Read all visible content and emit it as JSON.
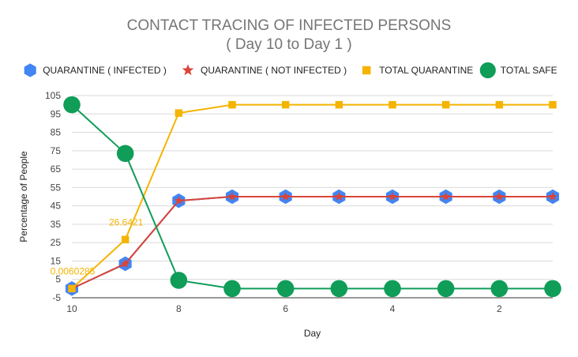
{
  "chart_data": {
    "type": "line",
    "title": "CONTACT TRACING OF INFECTED PERSONS",
    "subtitle": "( Day 10 to Day 1 )",
    "xlabel": "Day",
    "ylabel": "Percentage of People",
    "x": [
      10,
      9,
      8,
      7,
      6,
      5,
      4,
      3,
      2,
      1
    ],
    "x_ticks": [
      10,
      8,
      6,
      4,
      2
    ],
    "xlim": [
      10,
      1
    ],
    "ylim": [
      -5,
      105
    ],
    "y_ticks": [
      -5,
      5,
      15,
      25,
      35,
      45,
      55,
      65,
      75,
      85,
      95,
      105
    ],
    "grid": true,
    "legend_position": "top",
    "series": [
      {
        "name": "QUARANTINE ( INFECTED )",
        "color": "#4285f4",
        "marker": "hexagon",
        "values": [
          0,
          13.5,
          47.8,
          50,
          50,
          50,
          50,
          50,
          50,
          50
        ]
      },
      {
        "name": "QUARANTINE ( NOT INFECTED )",
        "color": "#db4437",
        "marker": "star",
        "values": [
          0,
          13.5,
          47.8,
          50,
          50,
          50,
          50,
          50,
          50,
          50
        ]
      },
      {
        "name": "TOTAL QUARANTINE",
        "color": "#f4b400",
        "marker": "square",
        "values": [
          0.0060285,
          26.6421,
          95.5,
          100,
          100,
          100,
          100,
          100,
          100,
          100
        ]
      },
      {
        "name": "TOTAL SAFE",
        "color": "#0f9d58",
        "marker": "circle",
        "values": [
          100,
          73.5,
          4.5,
          0,
          0,
          0,
          0,
          0,
          0,
          0
        ]
      }
    ],
    "annotations": [
      {
        "series": 2,
        "index": 0,
        "text": "0.0060285"
      },
      {
        "series": 2,
        "index": 1,
        "text": "26.6421"
      }
    ]
  }
}
